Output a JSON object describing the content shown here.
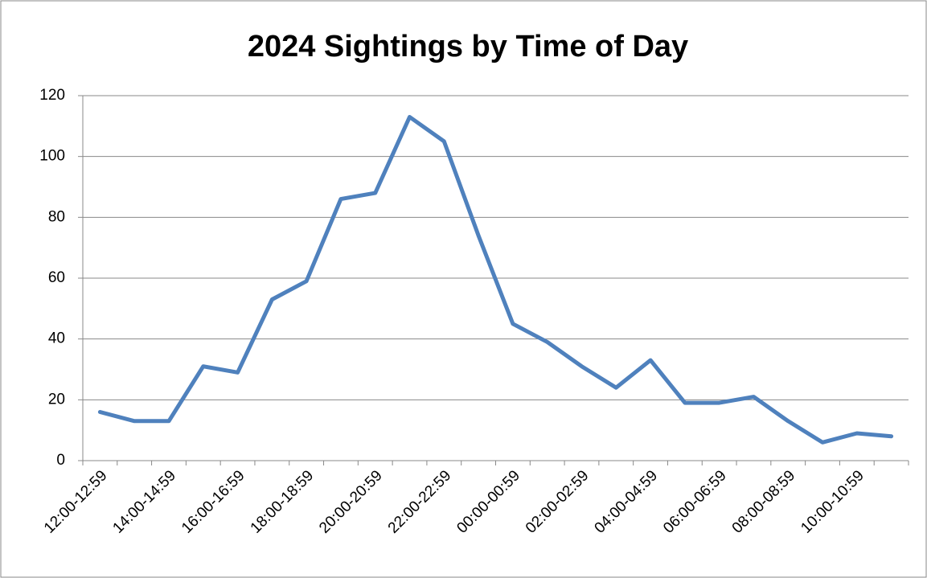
{
  "chart_data": {
    "type": "line",
    "title": "2024 Sightings by Time of Day",
    "categories": [
      "12:00-12:59",
      null,
      "14:00-14:59",
      null,
      "16:00-16:59",
      null,
      "18:00-18:59",
      null,
      "20:00-20:59",
      null,
      "22:00-22:59",
      null,
      "00:00-00:59",
      null,
      "02:00-02:59",
      null,
      "04:00-04:59",
      null,
      "06:00-06:59",
      null,
      "08:00-08:59",
      null,
      "10:00-10:59",
      null
    ],
    "values": [
      16,
      13,
      13,
      31,
      29,
      53,
      59,
      86,
      88,
      113,
      105,
      74,
      45,
      39,
      31,
      24,
      33,
      19,
      19,
      21,
      13,
      6,
      9,
      8
    ],
    "color": "#4f81bd",
    "ylim": [
      0,
      120
    ],
    "yticks": [
      0,
      20,
      40,
      60,
      80,
      100,
      120
    ],
    "grid": true
  }
}
